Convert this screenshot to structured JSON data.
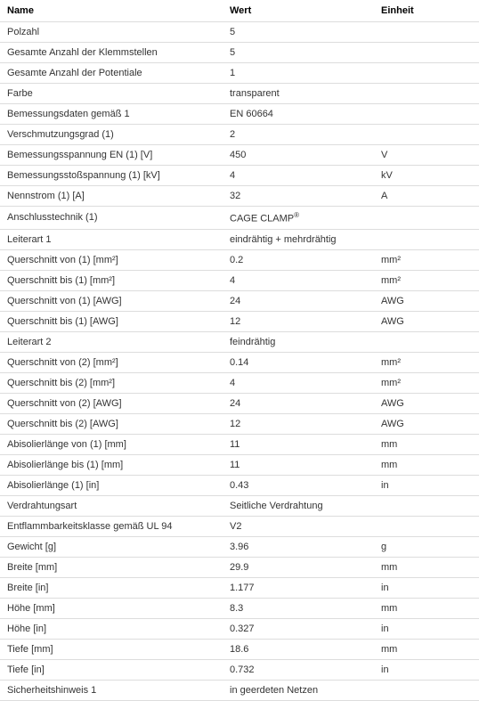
{
  "headers": {
    "name": "Name",
    "value": "Wert",
    "unit": "Einheit"
  },
  "rows": [
    {
      "name": "Polzahl",
      "value": "5",
      "unit": ""
    },
    {
      "name": "Gesamte Anzahl der Klemmstellen",
      "value": "5",
      "unit": ""
    },
    {
      "name": "Gesamte Anzahl der Potentiale",
      "value": "1",
      "unit": ""
    },
    {
      "name": "Farbe",
      "value": "transparent",
      "unit": ""
    },
    {
      "name": "Bemessungsdaten gemäß 1",
      "value": "EN 60664",
      "unit": ""
    },
    {
      "name": "Verschmutzungsgrad (1)",
      "value": "2",
      "unit": ""
    },
    {
      "name": "Bemessungsspannung EN (1) [V]",
      "value": "450",
      "unit": "V"
    },
    {
      "name": "Bemessungsstoßspannung (1) [kV]",
      "value": "4",
      "unit": "kV"
    },
    {
      "name": "Nennstrom (1) [A]",
      "value": "32",
      "unit": "A"
    },
    {
      "name": "Anschlusstechnik (1)",
      "value_html": "CAGE CLAMP<sup>®</sup>",
      "unit": ""
    },
    {
      "name": "Leiterart 1",
      "value": "eindrähtig + mehrdrähtig",
      "unit": ""
    },
    {
      "name": "Querschnitt von (1) [mm²]",
      "value": "0.2",
      "unit": "mm²"
    },
    {
      "name": "Querschnitt bis (1) [mm²]",
      "value": "4",
      "unit": "mm²"
    },
    {
      "name": "Querschnitt von (1) [AWG]",
      "value": "24",
      "unit": "AWG"
    },
    {
      "name": "Querschnitt bis (1) [AWG]",
      "value": "12",
      "unit": "AWG"
    },
    {
      "name": "Leiterart 2",
      "value": "feindrähtig",
      "unit": ""
    },
    {
      "name": "Querschnitt von (2) [mm²]",
      "value": "0.14",
      "unit": "mm²"
    },
    {
      "name": "Querschnitt bis (2) [mm²]",
      "value": "4",
      "unit": "mm²"
    },
    {
      "name": "Querschnitt von (2) [AWG]",
      "value": "24",
      "unit": "AWG"
    },
    {
      "name": "Querschnitt bis (2) [AWG]",
      "value": "12",
      "unit": "AWG"
    },
    {
      "name": "Abisolierlänge von (1) [mm]",
      "value": "11",
      "unit": "mm"
    },
    {
      "name": "Abisolierlänge bis (1) [mm]",
      "value": "11",
      "unit": "mm"
    },
    {
      "name": "Abisolierlänge (1) [in]",
      "value": "0.43",
      "unit": "in"
    },
    {
      "name": "Verdrahtungsart",
      "value": "Seitliche Verdrahtung",
      "unit": ""
    },
    {
      "name": "Entflammbarkeitsklasse gemäß UL 94",
      "value": "V2",
      "unit": ""
    },
    {
      "name": "Gewicht [g]",
      "value": "3.96",
      "unit": "g"
    },
    {
      "name": "Breite [mm]",
      "value": "29.9",
      "unit": "mm"
    },
    {
      "name": "Breite [in]",
      "value": "1.177",
      "unit": "in"
    },
    {
      "name": "Höhe [mm]",
      "value": "8.3",
      "unit": "mm"
    },
    {
      "name": "Höhe [in]",
      "value": "0.327",
      "unit": "in"
    },
    {
      "name": "Tiefe [mm]",
      "value": "18.6",
      "unit": "mm"
    },
    {
      "name": "Tiefe [in]",
      "value": "0.732",
      "unit": "in"
    },
    {
      "name": "Sicherheitshinweis 1",
      "value": "in geerdeten Netzen",
      "unit": ""
    }
  ]
}
